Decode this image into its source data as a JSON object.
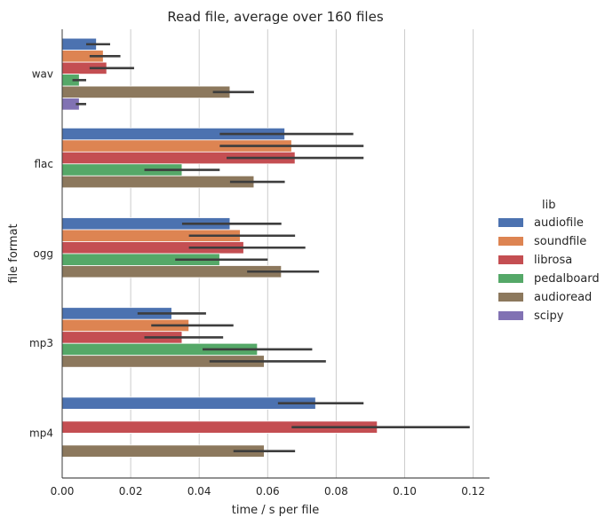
{
  "chart_data": {
    "type": "bar",
    "orientation": "horizontal",
    "title": "Read file, average over 160 files",
    "xlabel": "time / s per file",
    "ylabel": "file format",
    "xlim": [
      0,
      0.125
    ],
    "xticks": [
      "0.00",
      "0.02",
      "0.04",
      "0.06",
      "0.08",
      "0.10",
      "0.12"
    ],
    "xtick_values": [
      0,
      0.02,
      0.04,
      0.06,
      0.08,
      0.1,
      0.12
    ],
    "grid": "vertical",
    "categories": [
      "wav",
      "flac",
      "ogg",
      "mp3",
      "mp4"
    ],
    "legend": {
      "title": "lib",
      "placement": "right"
    },
    "series": [
      {
        "name": "audiofile",
        "color": "#4c72b0",
        "values": [
          0.01,
          0.065,
          0.049,
          0.032,
          0.074
        ],
        "err_low": [
          0.007,
          0.046,
          0.035,
          0.022,
          0.063
        ],
        "err_high": [
          0.014,
          0.085,
          0.064,
          0.042,
          0.088
        ]
      },
      {
        "name": "soundfile",
        "color": "#dd8452",
        "values": [
          0.012,
          0.067,
          0.052,
          0.037,
          null
        ],
        "err_low": [
          0.008,
          0.046,
          0.037,
          0.026,
          null
        ],
        "err_high": [
          0.017,
          0.088,
          0.068,
          0.05,
          null
        ]
      },
      {
        "name": "librosa",
        "color": "#c44e52",
        "values": [
          0.013,
          0.068,
          0.053,
          0.035,
          0.092
        ],
        "err_low": [
          0.008,
          0.048,
          0.037,
          0.024,
          0.067
        ],
        "err_high": [
          0.021,
          0.088,
          0.071,
          0.047,
          0.119
        ]
      },
      {
        "name": "pedalboard",
        "color": "#55a868",
        "values": [
          0.005,
          0.035,
          0.046,
          0.057,
          null
        ],
        "err_low": [
          0.003,
          0.024,
          0.033,
          0.041,
          null
        ],
        "err_high": [
          0.007,
          0.046,
          0.06,
          0.073,
          null
        ]
      },
      {
        "name": "audioread",
        "color": "#8c785d",
        "values": [
          0.049,
          0.056,
          0.064,
          0.059,
          0.059
        ],
        "err_low": [
          0.044,
          0.049,
          0.054,
          0.043,
          0.05
        ],
        "err_high": [
          0.056,
          0.065,
          0.075,
          0.077,
          0.068
        ]
      },
      {
        "name": "scipy",
        "color": "#8172b3",
        "values": [
          0.005,
          null,
          null,
          null,
          null
        ],
        "err_low": [
          0.004,
          null,
          null,
          null,
          null
        ],
        "err_high": [
          0.007,
          null,
          null,
          null,
          null
        ]
      }
    ]
  }
}
